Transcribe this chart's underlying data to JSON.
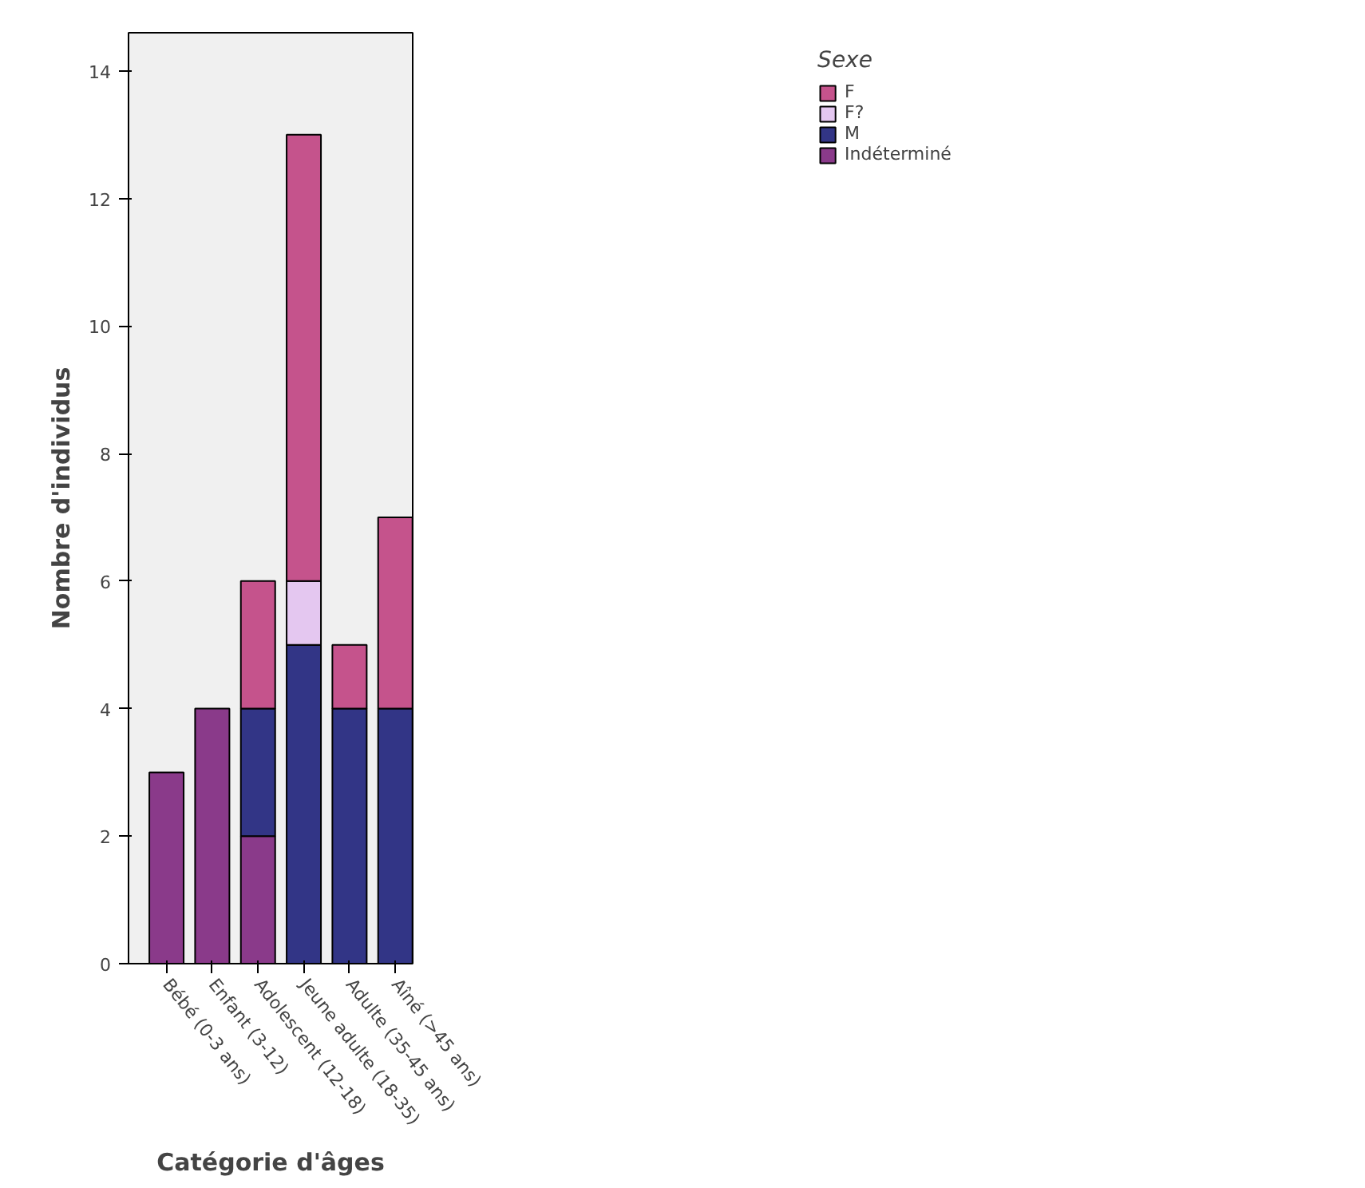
{
  "chart_data": {
    "type": "bar",
    "stacked": true,
    "xlabel": "Catégorie d'âges",
    "ylabel": "Nombre d'individus",
    "legend_title": "Sexe",
    "legend": "top right",
    "categories": [
      "Bébé (0-3 ans)",
      "Enfant (3-12)",
      "Adolescent (12-18)",
      "Jeune adulte (18-35)",
      "Adulte (35-45 ans)",
      "Aîné (>45 ans)"
    ],
    "series": [
      {
        "name": "Indéterminé",
        "color": "#8a3a8a",
        "values": [
          3,
          4,
          2,
          null,
          null,
          null
        ]
      },
      {
        "name": "M",
        "color": "#323586",
        "values": [
          null,
          null,
          2,
          5,
          4,
          4
        ]
      },
      {
        "name": "F?",
        "color": "#e4c7f0",
        "values": [
          null,
          null,
          null,
          1,
          null,
          null
        ]
      },
      {
        "name": "F",
        "color": "#c5538c",
        "values": [
          null,
          null,
          2,
          7,
          1,
          3
        ]
      }
    ],
    "ylim": [
      0,
      14.6
    ],
    "yticks": [
      0,
      2,
      4,
      6,
      8,
      10,
      12,
      14
    ],
    "grid": false
  }
}
